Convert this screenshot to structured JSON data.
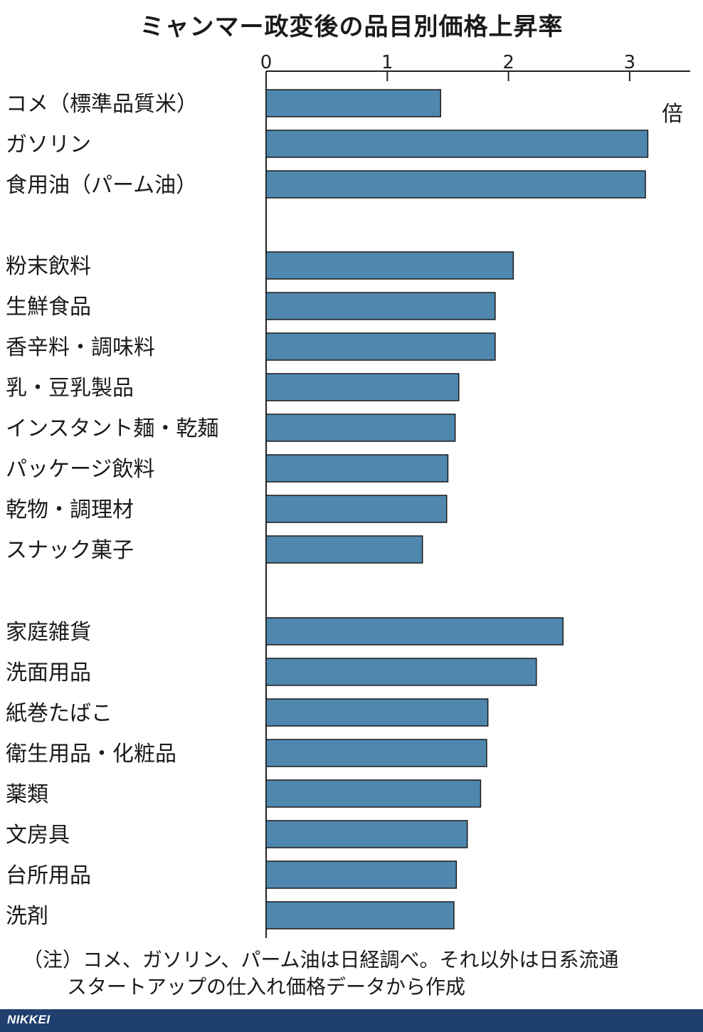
{
  "title": "ミャンマー政変後の品目別価格上昇率",
  "unit": "倍",
  "note": {
    "line1": "（注）コメ、ガソリン、パーム油は日経調べ。それ以外は日系流通",
    "line2": "スタートアップの仕入れ価格データから作成"
  },
  "footer": {
    "logo": "NIKKEI",
    "bar_color": "#1f3f6e"
  },
  "chart_data": {
    "type": "bar",
    "orientation": "horizontal",
    "title": "ミャンマー政変後の品目別価格上昇率",
    "unit": "倍",
    "xlim": [
      0,
      3.5
    ],
    "xticks": [
      "0",
      "1",
      "2",
      "3"
    ],
    "bar_color": "#4f87ae",
    "groups": [
      {
        "categories": [
          "コメ（標準品質米）",
          "ガソリン",
          "食用油（パーム油）"
        ],
        "values": [
          1.44,
          3.15,
          3.13
        ]
      },
      {
        "categories": [
          "粉末飲料",
          "生鮮食品",
          "香辛料・調味料",
          "乳・豆乳製品",
          "インスタント麺・乾麺",
          "パッケージ飲料",
          "乾物・調理材",
          "スナック菓子"
        ],
        "values": [
          2.04,
          1.89,
          1.89,
          1.59,
          1.56,
          1.5,
          1.49,
          1.29
        ]
      },
      {
        "categories": [
          "家庭雑貨",
          "洗面用品",
          "紙巻たばこ",
          "衛生用品・化粧品",
          "薬類",
          "文房具",
          "台所用品",
          "洗剤"
        ],
        "values": [
          2.45,
          2.23,
          1.83,
          1.82,
          1.77,
          1.66,
          1.57,
          1.55
        ]
      }
    ]
  }
}
